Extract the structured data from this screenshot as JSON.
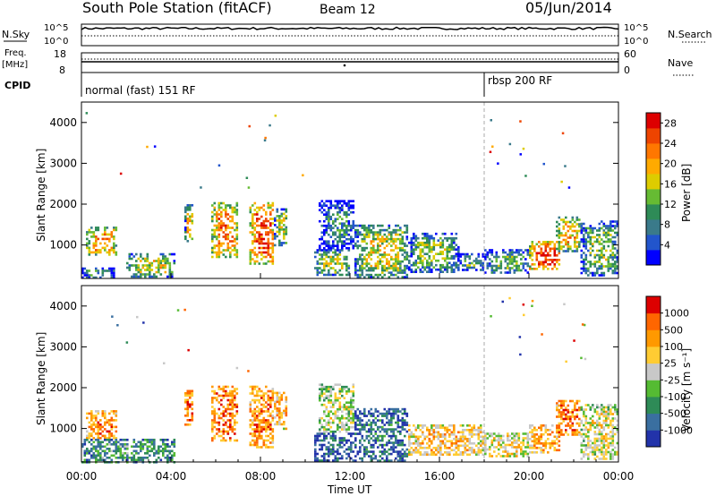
{
  "header": {
    "title": "South Pole Station (fitACF)",
    "beam": "Beam 12",
    "date": "05/Jun/2014"
  },
  "top_panels": {
    "nsky_label": "N.Sky",
    "nsearch_label": "N.Search",
    "nsky_ticks": [
      "10^5",
      "10^0"
    ],
    "nsearch_ticks": [
      "10^5",
      "10^0"
    ],
    "freq_label": "Freq.",
    "freq_unit": "[MHz]",
    "freq_ticks": [
      "18",
      "8"
    ],
    "nave_label": "Nave",
    "nave_ticks": [
      "60",
      "0"
    ],
    "cpid_label": "CPID",
    "cpid_segments": [
      {
        "label": "normal (fast) 151 RF",
        "start_hour": 0
      },
      {
        "label": "rbsp 200 RF",
        "start_hour": 18
      }
    ]
  },
  "chart_data": [
    {
      "type": "heatmap",
      "name": "power",
      "ylabel": "Slant Range [km]",
      "colorbar_label": "Power [dB]",
      "colorbar_ticks": [
        "4",
        "8",
        "12",
        "16",
        "20",
        "24",
        "28"
      ],
      "colorbar_colors": [
        "#0000ff",
        "#2255cc",
        "#3a7a8a",
        "#2e8b57",
        "#66bb33",
        "#ddcc00",
        "#ffaa00",
        "#ff7700",
        "#ee4400",
        "#dd0000"
      ],
      "ylim": [
        180,
        4500
      ],
      "yticks": [
        "1000",
        "2000",
        "3000",
        "4000"
      ],
      "xlim_hours": [
        0,
        24
      ],
      "mode_change_hour": 18,
      "echo_regions": [
        {
          "t0": 0.2,
          "t1": 1.6,
          "r0": 750,
          "r1": 1450,
          "level": 0.7
        },
        {
          "t0": 0.0,
          "t1": 1.5,
          "r0": 200,
          "r1": 450,
          "level": 0.35
        },
        {
          "t0": 2.0,
          "t1": 4.2,
          "r0": 250,
          "r1": 800,
          "level": 0.55
        },
        {
          "t0": 4.6,
          "t1": 5.0,
          "r0": 1100,
          "r1": 2000,
          "level": 0.6
        },
        {
          "t0": 5.8,
          "t1": 7.0,
          "r0": 700,
          "r1": 2050,
          "level": 0.75
        },
        {
          "t0": 7.5,
          "t1": 8.6,
          "r0": 550,
          "r1": 2050,
          "level": 0.85
        },
        {
          "t0": 8.6,
          "t1": 9.2,
          "r0": 1000,
          "r1": 1900,
          "level": 0.55
        },
        {
          "t0": 10.4,
          "t1": 12.0,
          "r0": 250,
          "r1": 900,
          "level": 0.5
        },
        {
          "t0": 10.6,
          "t1": 12.2,
          "r0": 900,
          "r1": 2100,
          "level": 0.3
        },
        {
          "t0": 12.2,
          "t1": 14.6,
          "r0": 200,
          "r1": 1500,
          "level": 0.55
        },
        {
          "t0": 14.6,
          "t1": 16.8,
          "r0": 350,
          "r1": 1300,
          "level": 0.45
        },
        {
          "t0": 16.8,
          "t1": 18.0,
          "r0": 400,
          "r1": 800,
          "level": 0.35
        },
        {
          "t0": 18.0,
          "t1": 20.0,
          "r0": 300,
          "r1": 900,
          "level": 0.4
        },
        {
          "t0": 20.0,
          "t1": 21.4,
          "r0": 400,
          "r1": 1100,
          "level": 0.9
        },
        {
          "t0": 21.2,
          "t1": 22.3,
          "r0": 850,
          "r1": 1700,
          "level": 0.65
        },
        {
          "t0": 22.3,
          "t1": 24.0,
          "r0": 250,
          "r1": 1600,
          "level": 0.45
        }
      ]
    },
    {
      "type": "heatmap",
      "name": "velocity",
      "ylabel": "Slant Range [km]",
      "xlabel": "Time UT",
      "colorbar_label": "Velocity [m s⁻¹]",
      "colorbar_ticks": [
        "1000",
        "500",
        "100",
        "25",
        "-25",
        "-100",
        "-500",
        "-1000"
      ],
      "colorbar_colors": [
        "#2233aa",
        "#3a6fa0",
        "#2e8b57",
        "#55bb33",
        "#c8c8c8",
        "#ffcc33",
        "#ff9900",
        "#ff6600",
        "#dd0000"
      ],
      "ylim": [
        180,
        4500
      ],
      "yticks": [
        "1000",
        "2000",
        "3000",
        "4000"
      ],
      "xticks": [
        "00:00",
        "04:00",
        "08:00",
        "12:00",
        "16:00",
        "20:00",
        "00:00"
      ],
      "xlim_hours": [
        0,
        24
      ],
      "mode_change_hour": 18,
      "echo_regions": [
        {
          "t0": 0.2,
          "t1": 1.6,
          "r0": 750,
          "r1": 1450,
          "level": 0.75
        },
        {
          "t0": 0.0,
          "t1": 4.2,
          "r0": 200,
          "r1": 750,
          "level": 0.3
        },
        {
          "t0": 4.6,
          "t1": 5.0,
          "r0": 1100,
          "r1": 2000,
          "level": 0.8
        },
        {
          "t0": 5.8,
          "t1": 7.0,
          "r0": 700,
          "r1": 2050,
          "level": 0.8
        },
        {
          "t0": 7.5,
          "t1": 8.6,
          "r0": 550,
          "r1": 2050,
          "level": 0.78
        },
        {
          "t0": 8.6,
          "t1": 9.2,
          "r0": 1000,
          "r1": 1900,
          "level": 0.7
        },
        {
          "t0": 10.4,
          "t1": 12.2,
          "r0": 200,
          "r1": 900,
          "level": 0.15
        },
        {
          "t0": 10.6,
          "t1": 12.2,
          "r0": 900,
          "r1": 2100,
          "level": 0.5
        },
        {
          "t0": 12.2,
          "t1": 14.6,
          "r0": 200,
          "r1": 1500,
          "level": 0.2
        },
        {
          "t0": 14.6,
          "t1": 18.0,
          "r0": 350,
          "r1": 1100,
          "level": 0.65
        },
        {
          "t0": 18.0,
          "t1": 20.0,
          "r0": 300,
          "r1": 900,
          "level": 0.6
        },
        {
          "t0": 20.0,
          "t1": 21.4,
          "r0": 400,
          "r1": 1100,
          "level": 0.72
        },
        {
          "t0": 21.2,
          "t1": 22.3,
          "r0": 850,
          "r1": 1700,
          "level": 0.8
        },
        {
          "t0": 22.3,
          "t1": 24.0,
          "r0": 250,
          "r1": 1600,
          "level": 0.55
        }
      ]
    }
  ]
}
